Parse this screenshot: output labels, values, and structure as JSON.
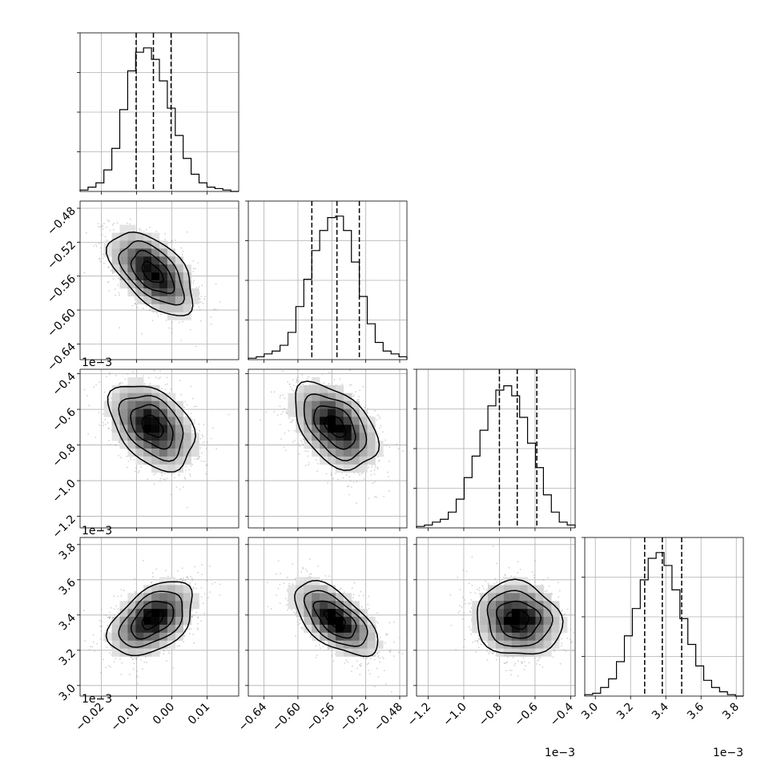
{
  "chart_data": {
    "type": "corner",
    "parameters": [
      {
        "range": [
          -0.026,
          0.019
        ],
        "ticks": [
          -0.02,
          -0.01,
          0.0,
          0.01
        ],
        "tick_labels": [
          "−0.02",
          "−0.01",
          "0.00",
          "0.01"
        ],
        "offset": "",
        "quantiles": [
          -0.0101,
          -0.0052,
          -0.0002
        ]
      },
      {
        "range": [
          -0.6585,
          -0.4715
        ],
        "ticks": [
          -0.64,
          -0.6,
          -0.56,
          -0.52,
          -0.48
        ],
        "tick_labels": [
          "−0.64",
          "−0.60",
          "−0.56",
          "−0.52",
          "−0.48"
        ],
        "offset": "1e−3",
        "quantiles": [
          -0.5836,
          -0.554,
          -0.5276
        ]
      },
      {
        "range": [
          -1.265,
          -0.375
        ],
        "ticks": [
          -1.2,
          -1.0,
          -0.8,
          -0.6,
          -0.4
        ],
        "tick_labels": [
          "−1.2",
          "−1.0",
          "−0.8",
          "−0.6",
          "−0.4"
        ],
        "offset": "1e−3",
        "quantiles": [
          -0.8,
          -0.7,
          -0.59
        ]
      },
      {
        "range": [
          2.94,
          3.84
        ],
        "ticks": [
          3.0,
          3.2,
          3.4,
          3.6,
          3.8
        ],
        "tick_labels": [
          "3.0",
          "3.2",
          "3.4",
          "3.6",
          "3.8"
        ],
        "offset": "1e−3",
        "quantiles": [
          3.28,
          3.38,
          3.49
        ]
      }
    ],
    "histograms": [
      {
        "counts": [
          0.01,
          0.03,
          0.06,
          0.15,
          0.3,
          0.57,
          0.84,
          0.97,
          1.0,
          0.92,
          0.77,
          0.58,
          0.39,
          0.23,
          0.12,
          0.06,
          0.03,
          0.02,
          0.01,
          0.0
        ]
      },
      {
        "counts": [
          0.01,
          0.02,
          0.04,
          0.06,
          0.1,
          0.19,
          0.37,
          0.56,
          0.76,
          0.9,
          0.99,
          1.0,
          0.9,
          0.68,
          0.44,
          0.25,
          0.12,
          0.06,
          0.04,
          0.02
        ]
      },
      {
        "counts": [
          0.01,
          0.02,
          0.04,
          0.06,
          0.11,
          0.2,
          0.35,
          0.5,
          0.68,
          0.85,
          0.96,
          0.99,
          0.92,
          0.77,
          0.59,
          0.42,
          0.23,
          0.11,
          0.04,
          0.02
        ]
      },
      {
        "counts": [
          0.01,
          0.02,
          0.06,
          0.12,
          0.24,
          0.42,
          0.61,
          0.81,
          0.96,
          1.0,
          0.91,
          0.74,
          0.54,
          0.36,
          0.21,
          0.11,
          0.06,
          0.03,
          0.01,
          0.0
        ]
      }
    ],
    "scatter_panels": [
      {
        "x": 0,
        "y": 1,
        "mean": [
          -0.0055,
          -0.556
        ],
        "sd": [
          0.006,
          0.0245
        ],
        "rho": -0.55
      },
      {
        "x": 0,
        "y": 2,
        "mean": [
          -0.0055,
          -0.695
        ],
        "sd": [
          0.006,
          0.12
        ],
        "rho": -0.4
      },
      {
        "x": 1,
        "y": 2,
        "mean": [
          -0.556,
          -0.695
        ],
        "sd": [
          0.0245,
          0.12
        ],
        "rho": -0.45
      },
      {
        "x": 0,
        "y": 3,
        "mean": [
          -0.0055,
          3.375
        ],
        "sd": [
          0.006,
          0.105
        ],
        "rho": 0.45
      },
      {
        "x": 1,
        "y": 3,
        "mean": [
          -0.556,
          3.375
        ],
        "sd": [
          0.0245,
          0.105
        ],
        "rho": -0.6
      },
      {
        "x": 2,
        "y": 3,
        "mean": [
          -0.695,
          3.375
        ],
        "sd": [
          0.12,
          0.105
        ],
        "rho": -0.1
      }
    ]
  }
}
